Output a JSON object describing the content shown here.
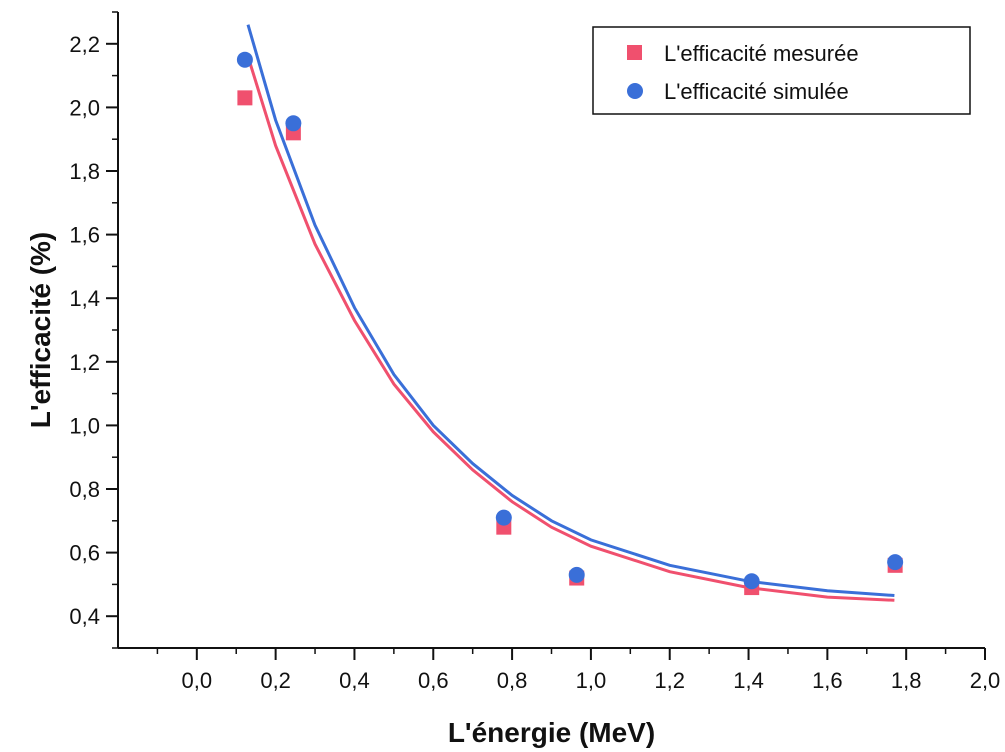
{
  "chart_data": {
    "type": "scatter",
    "xlabel": "L'énergie (MeV)",
    "ylabel": "L'efficacité (%)",
    "xlim": [
      -0.2,
      2.0
    ],
    "ylim": [
      0.3,
      2.3
    ],
    "x_ticks": [
      0.0,
      0.2,
      0.4,
      0.6,
      0.8,
      1.0,
      1.2,
      1.4,
      1.6,
      1.8,
      2.0
    ],
    "x_tick_labels": [
      "0,0",
      "0,2",
      "0,4",
      "0,6",
      "0,8",
      "1,0",
      "1,2",
      "1,4",
      "1,6",
      "1,8",
      "2,0"
    ],
    "y_ticks": [
      0.4,
      0.6,
      0.8,
      1.0,
      1.2,
      1.4,
      1.6,
      1.8,
      2.0,
      2.2
    ],
    "y_tick_labels": [
      "0,4",
      "0,6",
      "0,8",
      "1,0",
      "1,2",
      "1,4",
      "1,6",
      "1,8",
      "2,0",
      "2,2"
    ],
    "grid": false,
    "legend_position": "top-right",
    "series": [
      {
        "name": "L'efficacité mesurée",
        "marker": "square",
        "color": "#f0506e",
        "x": [
          0.122,
          0.245,
          0.779,
          0.964,
          1.408,
          1.772
        ],
        "y": [
          2.03,
          1.92,
          0.68,
          0.52,
          0.49,
          0.56
        ]
      },
      {
        "name": "L'efficacité simulée",
        "marker": "circle",
        "color": "#3a6fd8",
        "x": [
          0.122,
          0.245,
          0.779,
          0.964,
          1.408,
          1.772
        ],
        "y": [
          2.15,
          1.95,
          0.71,
          0.53,
          0.51,
          0.57
        ]
      }
    ],
    "fits": [
      {
        "series": "L'efficacité mesurée",
        "color": "#f0506e",
        "x_range": [
          0.13,
          1.77
        ],
        "points": [
          [
            0.13,
            2.16
          ],
          [
            0.2,
            1.88
          ],
          [
            0.3,
            1.57
          ],
          [
            0.4,
            1.33
          ],
          [
            0.5,
            1.13
          ],
          [
            0.6,
            0.98
          ],
          [
            0.7,
            0.86
          ],
          [
            0.8,
            0.76
          ],
          [
            0.9,
            0.68
          ],
          [
            1.0,
            0.62
          ],
          [
            1.2,
            0.54
          ],
          [
            1.4,
            0.49
          ],
          [
            1.6,
            0.46
          ],
          [
            1.77,
            0.45
          ]
        ]
      },
      {
        "series": "L'efficacité simulée",
        "color": "#3a6fd8",
        "x_range": [
          0.13,
          1.77
        ],
        "points": [
          [
            0.13,
            2.26
          ],
          [
            0.2,
            1.96
          ],
          [
            0.3,
            1.63
          ],
          [
            0.4,
            1.37
          ],
          [
            0.5,
            1.16
          ],
          [
            0.6,
            1.0
          ],
          [
            0.7,
            0.88
          ],
          [
            0.8,
            0.78
          ],
          [
            0.9,
            0.7
          ],
          [
            1.0,
            0.64
          ],
          [
            1.2,
            0.56
          ],
          [
            1.4,
            0.51
          ],
          [
            1.6,
            0.48
          ],
          [
            1.77,
            0.465
          ]
        ]
      }
    ]
  }
}
